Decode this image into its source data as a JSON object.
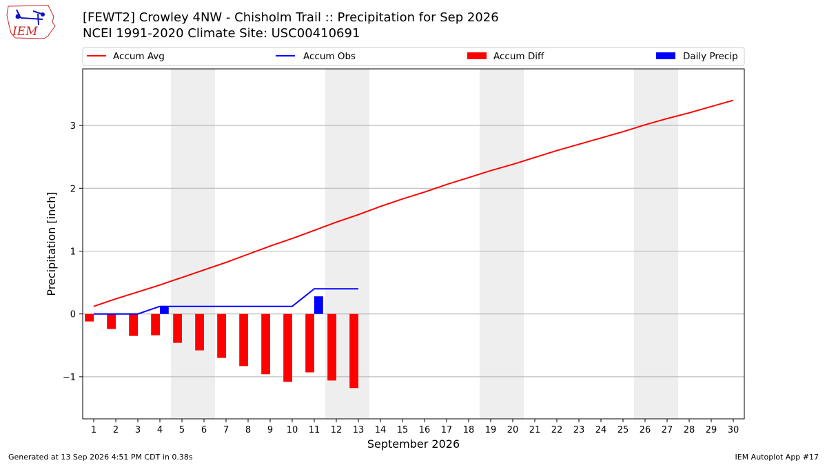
{
  "header": {
    "title_line1": "[FEWT2] Crowley 4NW - Chisholm Trail :: Precipitation for Sep 2026",
    "title_line2": "NCEI 1991-2020 Climate Site: USC00410691",
    "logo_text": "IEM"
  },
  "footer": {
    "generated": "Generated at 13 Sep 2026 4:51 PM CDT in 0.38s",
    "app": "IEM Autoplot App #17"
  },
  "colors": {
    "avg": "#ff0000",
    "obs": "#0000ff",
    "diff": "#ff0000",
    "daily": "#0000ff",
    "weekend_shade": "#eeeeee",
    "grid": "#b0b0b0"
  },
  "chart_data": {
    "type": "bar",
    "xlabel": "September 2026",
    "ylabel": "Precipitation [inch]",
    "xlim": [
      0.5,
      30.5
    ],
    "ylim": [
      -1.67,
      3.9
    ],
    "yticks": [
      -1,
      0,
      1,
      2,
      3
    ],
    "ytick_labels": [
      "−1",
      "0",
      "1",
      "2",
      "3"
    ],
    "grid": "horizontal",
    "legend_position": "top",
    "days": [
      1,
      2,
      3,
      4,
      5,
      6,
      7,
      8,
      9,
      10,
      11,
      12,
      13,
      14,
      15,
      16,
      17,
      18,
      19,
      20,
      21,
      22,
      23,
      24,
      25,
      26,
      27,
      28,
      29,
      30
    ],
    "weekend_ranges": [
      [
        5,
        6
      ],
      [
        12,
        13
      ],
      [
        19,
        20
      ],
      [
        26,
        27
      ]
    ],
    "series": [
      {
        "name": "Accum Avg",
        "kind": "line",
        "x": [
          1,
          2,
          3,
          4,
          5,
          6,
          7,
          8,
          9,
          10,
          11,
          12,
          13,
          14,
          15,
          16,
          17,
          18,
          19,
          20,
          21,
          22,
          23,
          24,
          25,
          26,
          27,
          28,
          29,
          30
        ],
        "values": [
          0.12,
          0.24,
          0.35,
          0.46,
          0.58,
          0.7,
          0.82,
          0.95,
          1.08,
          1.2,
          1.33,
          1.46,
          1.58,
          1.71,
          1.83,
          1.94,
          2.06,
          2.17,
          2.28,
          2.38,
          2.49,
          2.6,
          2.7,
          2.8,
          2.9,
          3.01,
          3.11,
          3.2,
          3.3,
          3.4
        ]
      },
      {
        "name": "Accum Obs",
        "kind": "line",
        "x": [
          1,
          2,
          3,
          4,
          5,
          6,
          7,
          8,
          9,
          10,
          11,
          12,
          13
        ],
        "values": [
          0.0,
          0.0,
          0.0,
          0.12,
          0.12,
          0.12,
          0.12,
          0.12,
          0.12,
          0.12,
          0.4,
          0.4,
          0.4
        ]
      },
      {
        "name": "Accum Diff",
        "kind": "bar",
        "x": [
          1,
          2,
          3,
          4,
          5,
          6,
          7,
          8,
          9,
          10,
          11,
          12,
          13
        ],
        "values": [
          -0.12,
          -0.24,
          -0.35,
          -0.34,
          -0.46,
          -0.58,
          -0.7,
          -0.83,
          -0.96,
          -1.08,
          -0.93,
          -1.06,
          -1.18
        ]
      },
      {
        "name": "Daily Precip",
        "kind": "bar",
        "x": [
          1,
          2,
          3,
          4,
          5,
          6,
          7,
          8,
          9,
          10,
          11,
          12,
          13
        ],
        "values": [
          0,
          0,
          0,
          0.12,
          0,
          0,
          0,
          0,
          0,
          0,
          0.28,
          0,
          0
        ]
      }
    ]
  }
}
